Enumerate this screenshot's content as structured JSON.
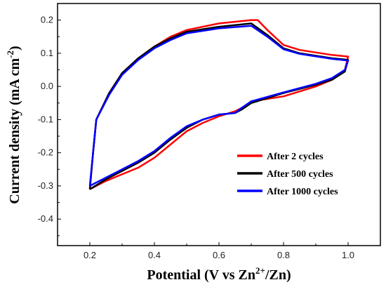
{
  "chart_data": {
    "type": "line",
    "xlabel": {
      "pre": "Potential (V vs Zn",
      "sup": "2+",
      "post": "/Zn)"
    },
    "ylabel": {
      "pre": "Current density (mA cm",
      "sup": "-2",
      "post": ")"
    },
    "xlim": [
      0.1,
      1.1
    ],
    "ylim": [
      -0.48,
      0.25
    ],
    "xticks": [
      0.2,
      0.4,
      0.6,
      0.8,
      1.0
    ],
    "xtick_labels": [
      "0.2",
      "0.4",
      "0.6",
      "0.8",
      "1.0"
    ],
    "yticks": [
      -0.4,
      -0.3,
      -0.2,
      -0.1,
      0.0,
      0.1,
      0.2
    ],
    "ytick_labels": [
      "-0.4",
      "-0.3",
      "-0.2",
      "-0.1",
      "0.0",
      "0.1",
      "0.2"
    ],
    "grid": false,
    "legend_position": "lower-right",
    "series": [
      {
        "name": "After 2 cycles",
        "color": "#ff0000",
        "points": [
          [
            0.2,
            -0.31
          ],
          [
            0.25,
            -0.285
          ],
          [
            0.3,
            -0.265
          ],
          [
            0.35,
            -0.245
          ],
          [
            0.4,
            -0.215
          ],
          [
            0.45,
            -0.175
          ],
          [
            0.5,
            -0.135
          ],
          [
            0.55,
            -0.11
          ],
          [
            0.6,
            -0.09
          ],
          [
            0.65,
            -0.075
          ],
          [
            0.68,
            -0.06
          ],
          [
            0.7,
            -0.045
          ],
          [
            0.8,
            -0.03
          ],
          [
            0.9,
            0.0
          ],
          [
            0.95,
            0.02
          ],
          [
            0.99,
            0.05
          ],
          [
            1.0,
            0.09
          ],
          [
            0.95,
            0.095
          ],
          [
            0.85,
            0.11
          ],
          [
            0.8,
            0.125
          ],
          [
            0.75,
            0.17
          ],
          [
            0.72,
            0.2
          ],
          [
            0.7,
            0.2
          ],
          [
            0.6,
            0.19
          ],
          [
            0.5,
            0.17
          ],
          [
            0.45,
            0.15
          ],
          [
            0.4,
            0.12
          ],
          [
            0.35,
            0.085
          ],
          [
            0.3,
            0.04
          ],
          [
            0.26,
            -0.02
          ],
          [
            0.22,
            -0.1
          ],
          [
            0.21,
            -0.2
          ],
          [
            0.2,
            -0.31
          ]
        ]
      },
      {
        "name": "After 500 cycles",
        "color": "#000000",
        "points": [
          [
            0.2,
            -0.31
          ],
          [
            0.25,
            -0.28
          ],
          [
            0.3,
            -0.255
          ],
          [
            0.35,
            -0.23
          ],
          [
            0.4,
            -0.2
          ],
          [
            0.45,
            -0.16
          ],
          [
            0.5,
            -0.125
          ],
          [
            0.55,
            -0.1
          ],
          [
            0.6,
            -0.085
          ],
          [
            0.65,
            -0.08
          ],
          [
            0.67,
            -0.07
          ],
          [
            0.7,
            -0.05
          ],
          [
            0.8,
            -0.02
          ],
          [
            0.9,
            0.005
          ],
          [
            0.95,
            0.02
          ],
          [
            0.99,
            0.045
          ],
          [
            1.0,
            0.08
          ],
          [
            0.95,
            0.085
          ],
          [
            0.85,
            0.1
          ],
          [
            0.8,
            0.115
          ],
          [
            0.75,
            0.155
          ],
          [
            0.7,
            0.19
          ],
          [
            0.6,
            0.18
          ],
          [
            0.5,
            0.165
          ],
          [
            0.45,
            0.145
          ],
          [
            0.4,
            0.12
          ],
          [
            0.35,
            0.085
          ],
          [
            0.3,
            0.04
          ],
          [
            0.26,
            -0.02
          ],
          [
            0.22,
            -0.1
          ],
          [
            0.21,
            -0.2
          ],
          [
            0.2,
            -0.31
          ]
        ]
      },
      {
        "name": "After 1000 cycles",
        "color": "#0000ff",
        "points": [
          [
            0.2,
            -0.3
          ],
          [
            0.25,
            -0.275
          ],
          [
            0.3,
            -0.25
          ],
          [
            0.35,
            -0.225
          ],
          [
            0.4,
            -0.195
          ],
          [
            0.45,
            -0.155
          ],
          [
            0.5,
            -0.12
          ],
          [
            0.55,
            -0.1
          ],
          [
            0.6,
            -0.085
          ],
          [
            0.65,
            -0.08
          ],
          [
            0.67,
            -0.065
          ],
          [
            0.7,
            -0.045
          ],
          [
            0.8,
            -0.018
          ],
          [
            0.9,
            0.008
          ],
          [
            0.95,
            0.025
          ],
          [
            0.99,
            0.05
          ],
          [
            1.0,
            0.078
          ],
          [
            0.95,
            0.083
          ],
          [
            0.85,
            0.098
          ],
          [
            0.8,
            0.112
          ],
          [
            0.75,
            0.15
          ],
          [
            0.7,
            0.183
          ],
          [
            0.6,
            0.175
          ],
          [
            0.5,
            0.16
          ],
          [
            0.45,
            0.14
          ],
          [
            0.4,
            0.115
          ],
          [
            0.35,
            0.08
          ],
          [
            0.3,
            0.035
          ],
          [
            0.26,
            -0.025
          ],
          [
            0.22,
            -0.1
          ],
          [
            0.21,
            -0.2
          ],
          [
            0.2,
            -0.3
          ]
        ]
      }
    ]
  }
}
